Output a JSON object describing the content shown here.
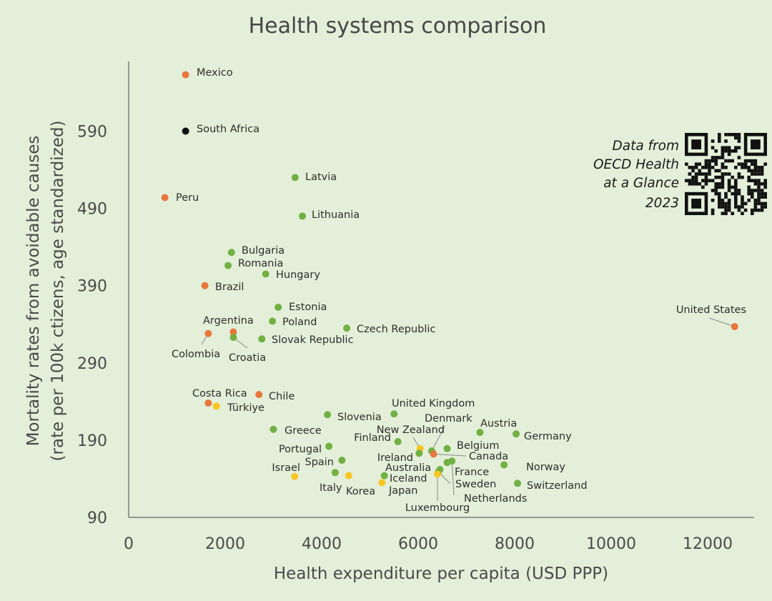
{
  "chart_data": {
    "type": "scatter",
    "title": "Health systems comparison",
    "xlabel": "Health expenditure per capita (USD PPP)",
    "ylabel": [
      "Mortality rates from avoidable causes",
      "(rate per 100k ctizens, age standardized)"
    ],
    "xlim": [
      0,
      13000
    ],
    "ylim": [
      90,
      685
    ],
    "xticks": [
      0,
      2000,
      4000,
      6000,
      8000,
      10000,
      12000
    ],
    "yticks": [
      90,
      190,
      290,
      390,
      490,
      590
    ],
    "grid": false,
    "note": [
      "Data from",
      "OECD Health",
      "at a Glance",
      "2023"
    ],
    "colors": {
      "orange": "#e8773d",
      "green": "#72b043",
      "yellow": "#f9c623",
      "black": "#111111",
      "axis": "#7a7a7a",
      "leader": "#8a8a8a"
    },
    "points": [
      {
        "name": "Mexico",
        "x": 1180,
        "y": 663,
        "color": "orange"
      },
      {
        "name": "South Africa",
        "x": 1180,
        "y": 590,
        "color": "black"
      },
      {
        "name": "Peru",
        "x": 750,
        "y": 504,
        "color": "orange"
      },
      {
        "name": "Latvia",
        "x": 3450,
        "y": 530,
        "color": "green"
      },
      {
        "name": "Lithuania",
        "x": 3600,
        "y": 480,
        "color": "green"
      },
      {
        "name": "Bulgaria",
        "x": 2130,
        "y": 433,
        "color": "green"
      },
      {
        "name": "Romania",
        "x": 2060,
        "y": 416,
        "color": "green"
      },
      {
        "name": "Hungary",
        "x": 2840,
        "y": 405,
        "color": "green"
      },
      {
        "name": "Brazil",
        "x": 1580,
        "y": 390,
        "color": "orange"
      },
      {
        "name": "Estonia",
        "x": 3100,
        "y": 362,
        "color": "green"
      },
      {
        "name": "Poland",
        "x": 2980,
        "y": 344,
        "color": "green"
      },
      {
        "name": "Argentina",
        "x": 2170,
        "y": 330,
        "color": "orange"
      },
      {
        "name": "Colombia",
        "x": 1650,
        "y": 328,
        "color": "orange"
      },
      {
        "name": "Croatia",
        "x": 2170,
        "y": 323,
        "color": "green"
      },
      {
        "name": "Slovak Republic",
        "x": 2760,
        "y": 321,
        "color": "green"
      },
      {
        "name": "Czech Republic",
        "x": 4520,
        "y": 335,
        "color": "green"
      },
      {
        "name": "United States",
        "x": 12560,
        "y": 337,
        "color": "orange"
      },
      {
        "name": "Chile",
        "x": 2700,
        "y": 249,
        "color": "orange"
      },
      {
        "name": "Costa Rica",
        "x": 1650,
        "y": 238,
        "color": "orange"
      },
      {
        "name": "Türkiye",
        "x": 1820,
        "y": 234,
        "color": "yellow"
      },
      {
        "name": "Slovenia",
        "x": 4120,
        "y": 223,
        "color": "green"
      },
      {
        "name": "United Kingdom",
        "x": 5500,
        "y": 224,
        "color": "green"
      },
      {
        "name": "Greece",
        "x": 3000,
        "y": 204,
        "color": "green"
      },
      {
        "name": "Austria",
        "x": 7280,
        "y": 200,
        "color": "green"
      },
      {
        "name": "Germany",
        "x": 8030,
        "y": 198,
        "color": "green"
      },
      {
        "name": "Finland",
        "x": 5580,
        "y": 188,
        "color": "green"
      },
      {
        "name": "Portugal",
        "x": 4150,
        "y": 182,
        "color": "green"
      },
      {
        "name": "New Zealand",
        "x": 6040,
        "y": 179,
        "color": "yellow"
      },
      {
        "name": "Belgium",
        "x": 6600,
        "y": 179,
        "color": "green"
      },
      {
        "name": "Denmark",
        "x": 6280,
        "y": 176,
        "color": "green"
      },
      {
        "name": "Ireland",
        "x": 6020,
        "y": 173,
        "color": "green"
      },
      {
        "name": "Canada",
        "x": 6320,
        "y": 172,
        "color": "orange"
      },
      {
        "name": "Spain",
        "x": 4420,
        "y": 164,
        "color": "green"
      },
      {
        "name": "Netherlands",
        "x": 6700,
        "y": 163,
        "color": "green"
      },
      {
        "name": "Australia",
        "x": 6600,
        "y": 161,
        "color": "green"
      },
      {
        "name": "Norway",
        "x": 7780,
        "y": 158,
        "color": "green"
      },
      {
        "name": "France",
        "x": 6450,
        "y": 152,
        "color": "green"
      },
      {
        "name": "Sweden",
        "x": 6420,
        "y": 149,
        "color": "green"
      },
      {
        "name": "Luxembourg",
        "x": 6400,
        "y": 146,
        "color": "yellow"
      },
      {
        "name": "Italy",
        "x": 4280,
        "y": 148,
        "color": "green"
      },
      {
        "name": "Korea",
        "x": 4560,
        "y": 144,
        "color": "yellow"
      },
      {
        "name": "Iceland",
        "x": 5300,
        "y": 144,
        "color": "green"
      },
      {
        "name": "Israel",
        "x": 3440,
        "y": 143,
        "color": "yellow"
      },
      {
        "name": "Japan",
        "x": 5250,
        "y": 135,
        "color": "yellow"
      },
      {
        "name": "Switzerland",
        "x": 8060,
        "y": 134,
        "color": "green"
      }
    ]
  }
}
